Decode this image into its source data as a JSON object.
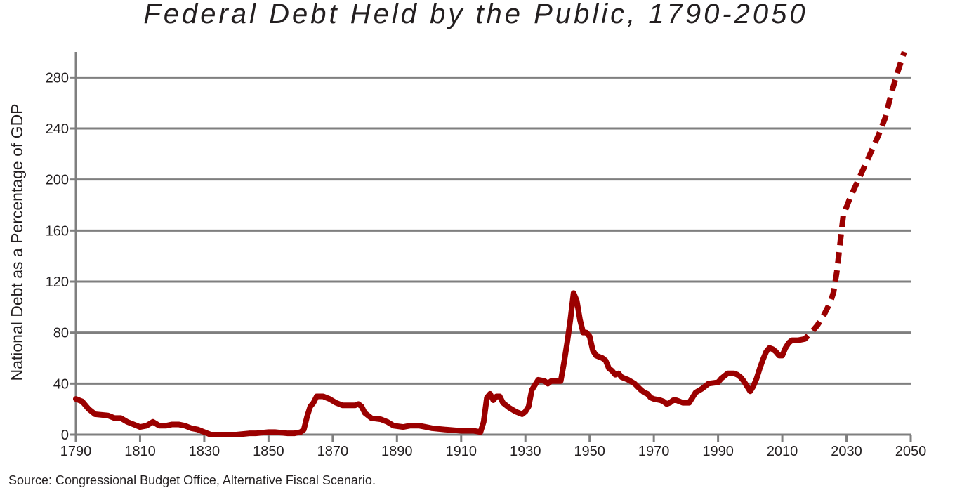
{
  "chart_data": {
    "type": "line",
    "title": "Federal Debt Held by the Public, 1790-2050",
    "xlabel": "",
    "ylabel": "National Debt as a Percentage of GDP",
    "xlim": [
      1790,
      2050
    ],
    "ylim": [
      0,
      300
    ],
    "x_ticks": [
      1790,
      1810,
      1830,
      1850,
      1870,
      1890,
      1910,
      1930,
      1950,
      1970,
      1990,
      2010,
      2030,
      2050
    ],
    "y_ticks": [
      0,
      40,
      80,
      120,
      160,
      200,
      240,
      280
    ],
    "grid": true,
    "line_color": "#9b0000",
    "source": "Source: Congressional Budget Office, Alternative Fiscal Scenario.",
    "series": [
      {
        "style": "solid",
        "points": [
          [
            1790,
            28
          ],
          [
            1792,
            26
          ],
          [
            1794,
            20
          ],
          [
            1796,
            16
          ],
          [
            1800,
            15
          ],
          [
            1802,
            13
          ],
          [
            1804,
            13
          ],
          [
            1806,
            10
          ],
          [
            1808,
            8
          ],
          [
            1810,
            6
          ],
          [
            1812,
            7
          ],
          [
            1814,
            10
          ],
          [
            1816,
            7
          ],
          [
            1818,
            7
          ],
          [
            1820,
            8
          ],
          [
            1822,
            8
          ],
          [
            1824,
            7
          ],
          [
            1826,
            5
          ],
          [
            1828,
            4
          ],
          [
            1830,
            2
          ],
          [
            1832,
            0
          ],
          [
            1836,
            0
          ],
          [
            1840,
            0
          ],
          [
            1844,
            1
          ],
          [
            1846,
            1
          ],
          [
            1850,
            2
          ],
          [
            1852,
            2
          ],
          [
            1856,
            1
          ],
          [
            1858,
            1
          ],
          [
            1860,
            2
          ],
          [
            1861,
            4
          ],
          [
            1862,
            14
          ],
          [
            1863,
            22
          ],
          [
            1864,
            25
          ],
          [
            1865,
            30
          ],
          [
            1867,
            30
          ],
          [
            1869,
            28
          ],
          [
            1871,
            25
          ],
          [
            1873,
            23
          ],
          [
            1875,
            23
          ],
          [
            1877,
            23
          ],
          [
            1878,
            24
          ],
          [
            1879,
            22
          ],
          [
            1880,
            17
          ],
          [
            1882,
            13
          ],
          [
            1885,
            12
          ],
          [
            1887,
            10
          ],
          [
            1889,
            7
          ],
          [
            1892,
            6
          ],
          [
            1894,
            7
          ],
          [
            1897,
            7
          ],
          [
            1899,
            6
          ],
          [
            1901,
            5
          ],
          [
            1905,
            4
          ],
          [
            1910,
            3
          ],
          [
            1914,
            3
          ],
          [
            1916,
            2
          ],
          [
            1917,
            10
          ],
          [
            1918,
            29
          ],
          [
            1919,
            32
          ],
          [
            1920,
            27
          ],
          [
            1921,
            30
          ],
          [
            1922,
            30
          ],
          [
            1923,
            25
          ],
          [
            1925,
            21
          ],
          [
            1927,
            18
          ],
          [
            1929,
            16
          ],
          [
            1930,
            18
          ],
          [
            1931,
            22
          ],
          [
            1932,
            35
          ],
          [
            1933,
            39
          ],
          [
            1934,
            43
          ],
          [
            1936,
            42
          ],
          [
            1937,
            40
          ],
          [
            1938,
            42
          ],
          [
            1941,
            42
          ],
          [
            1942,
            56
          ],
          [
            1943,
            72
          ],
          [
            1944,
            90
          ],
          [
            1945,
            111
          ],
          [
            1946,
            105
          ],
          [
            1947,
            90
          ],
          [
            1948,
            80
          ],
          [
            1949,
            80
          ],
          [
            1950,
            77
          ],
          [
            1951,
            66
          ],
          [
            1952,
            62
          ],
          [
            1954,
            60
          ],
          [
            1955,
            58
          ],
          [
            1956,
            52
          ],
          [
            1957,
            50
          ],
          [
            1958,
            47
          ],
          [
            1959,
            48
          ],
          [
            1960,
            45
          ],
          [
            1962,
            43
          ],
          [
            1964,
            40
          ],
          [
            1966,
            35
          ],
          [
            1967,
            33
          ],
          [
            1968,
            32
          ],
          [
            1969,
            29
          ],
          [
            1970,
            28
          ],
          [
            1972,
            27
          ],
          [
            1973,
            26
          ],
          [
            1974,
            24
          ],
          [
            1975,
            25
          ],
          [
            1976,
            27
          ],
          [
            1977,
            27
          ],
          [
            1978,
            26
          ],
          [
            1979,
            25
          ],
          [
            1981,
            25
          ],
          [
            1982,
            29
          ],
          [
            1983,
            33
          ],
          [
            1985,
            36
          ],
          [
            1987,
            40
          ],
          [
            1990,
            41
          ],
          [
            1991,
            44
          ],
          [
            1992,
            46
          ],
          [
            1993,
            48
          ],
          [
            1995,
            48
          ],
          [
            1996,
            47
          ],
          [
            1997,
            45
          ],
          [
            1998,
            42
          ],
          [
            1999,
            38
          ],
          [
            2000,
            34
          ],
          [
            2001,
            38
          ],
          [
            2002,
            44
          ],
          [
            2003,
            52
          ],
          [
            2004,
            59
          ],
          [
            2005,
            65
          ],
          [
            2006,
            68
          ],
          [
            2007,
            67
          ],
          [
            2008,
            65
          ],
          [
            2009,
            62
          ],
          [
            2010,
            62
          ],
          [
            2011,
            68
          ],
          [
            2012,
            72
          ],
          [
            2013,
            74
          ],
          [
            2014,
            74
          ],
          [
            2015,
            74
          ]
        ]
      },
      {
        "style": "dashed",
        "points": [
          [
            2015,
            74
          ],
          [
            2017,
            75
          ],
          [
            2019,
            80
          ],
          [
            2021,
            86
          ],
          [
            2023,
            94
          ],
          [
            2025,
            104
          ],
          [
            2026,
            112
          ],
          [
            2027,
            128
          ],
          [
            2028,
            150
          ],
          [
            2029,
            172
          ],
          [
            2031,
            185
          ],
          [
            2033,
            196
          ],
          [
            2035,
            207
          ],
          [
            2037,
            218
          ],
          [
            2040,
            235
          ],
          [
            2042,
            248
          ],
          [
            2044,
            268
          ],
          [
            2046,
            285
          ],
          [
            2048,
            300
          ]
        ]
      }
    ]
  }
}
